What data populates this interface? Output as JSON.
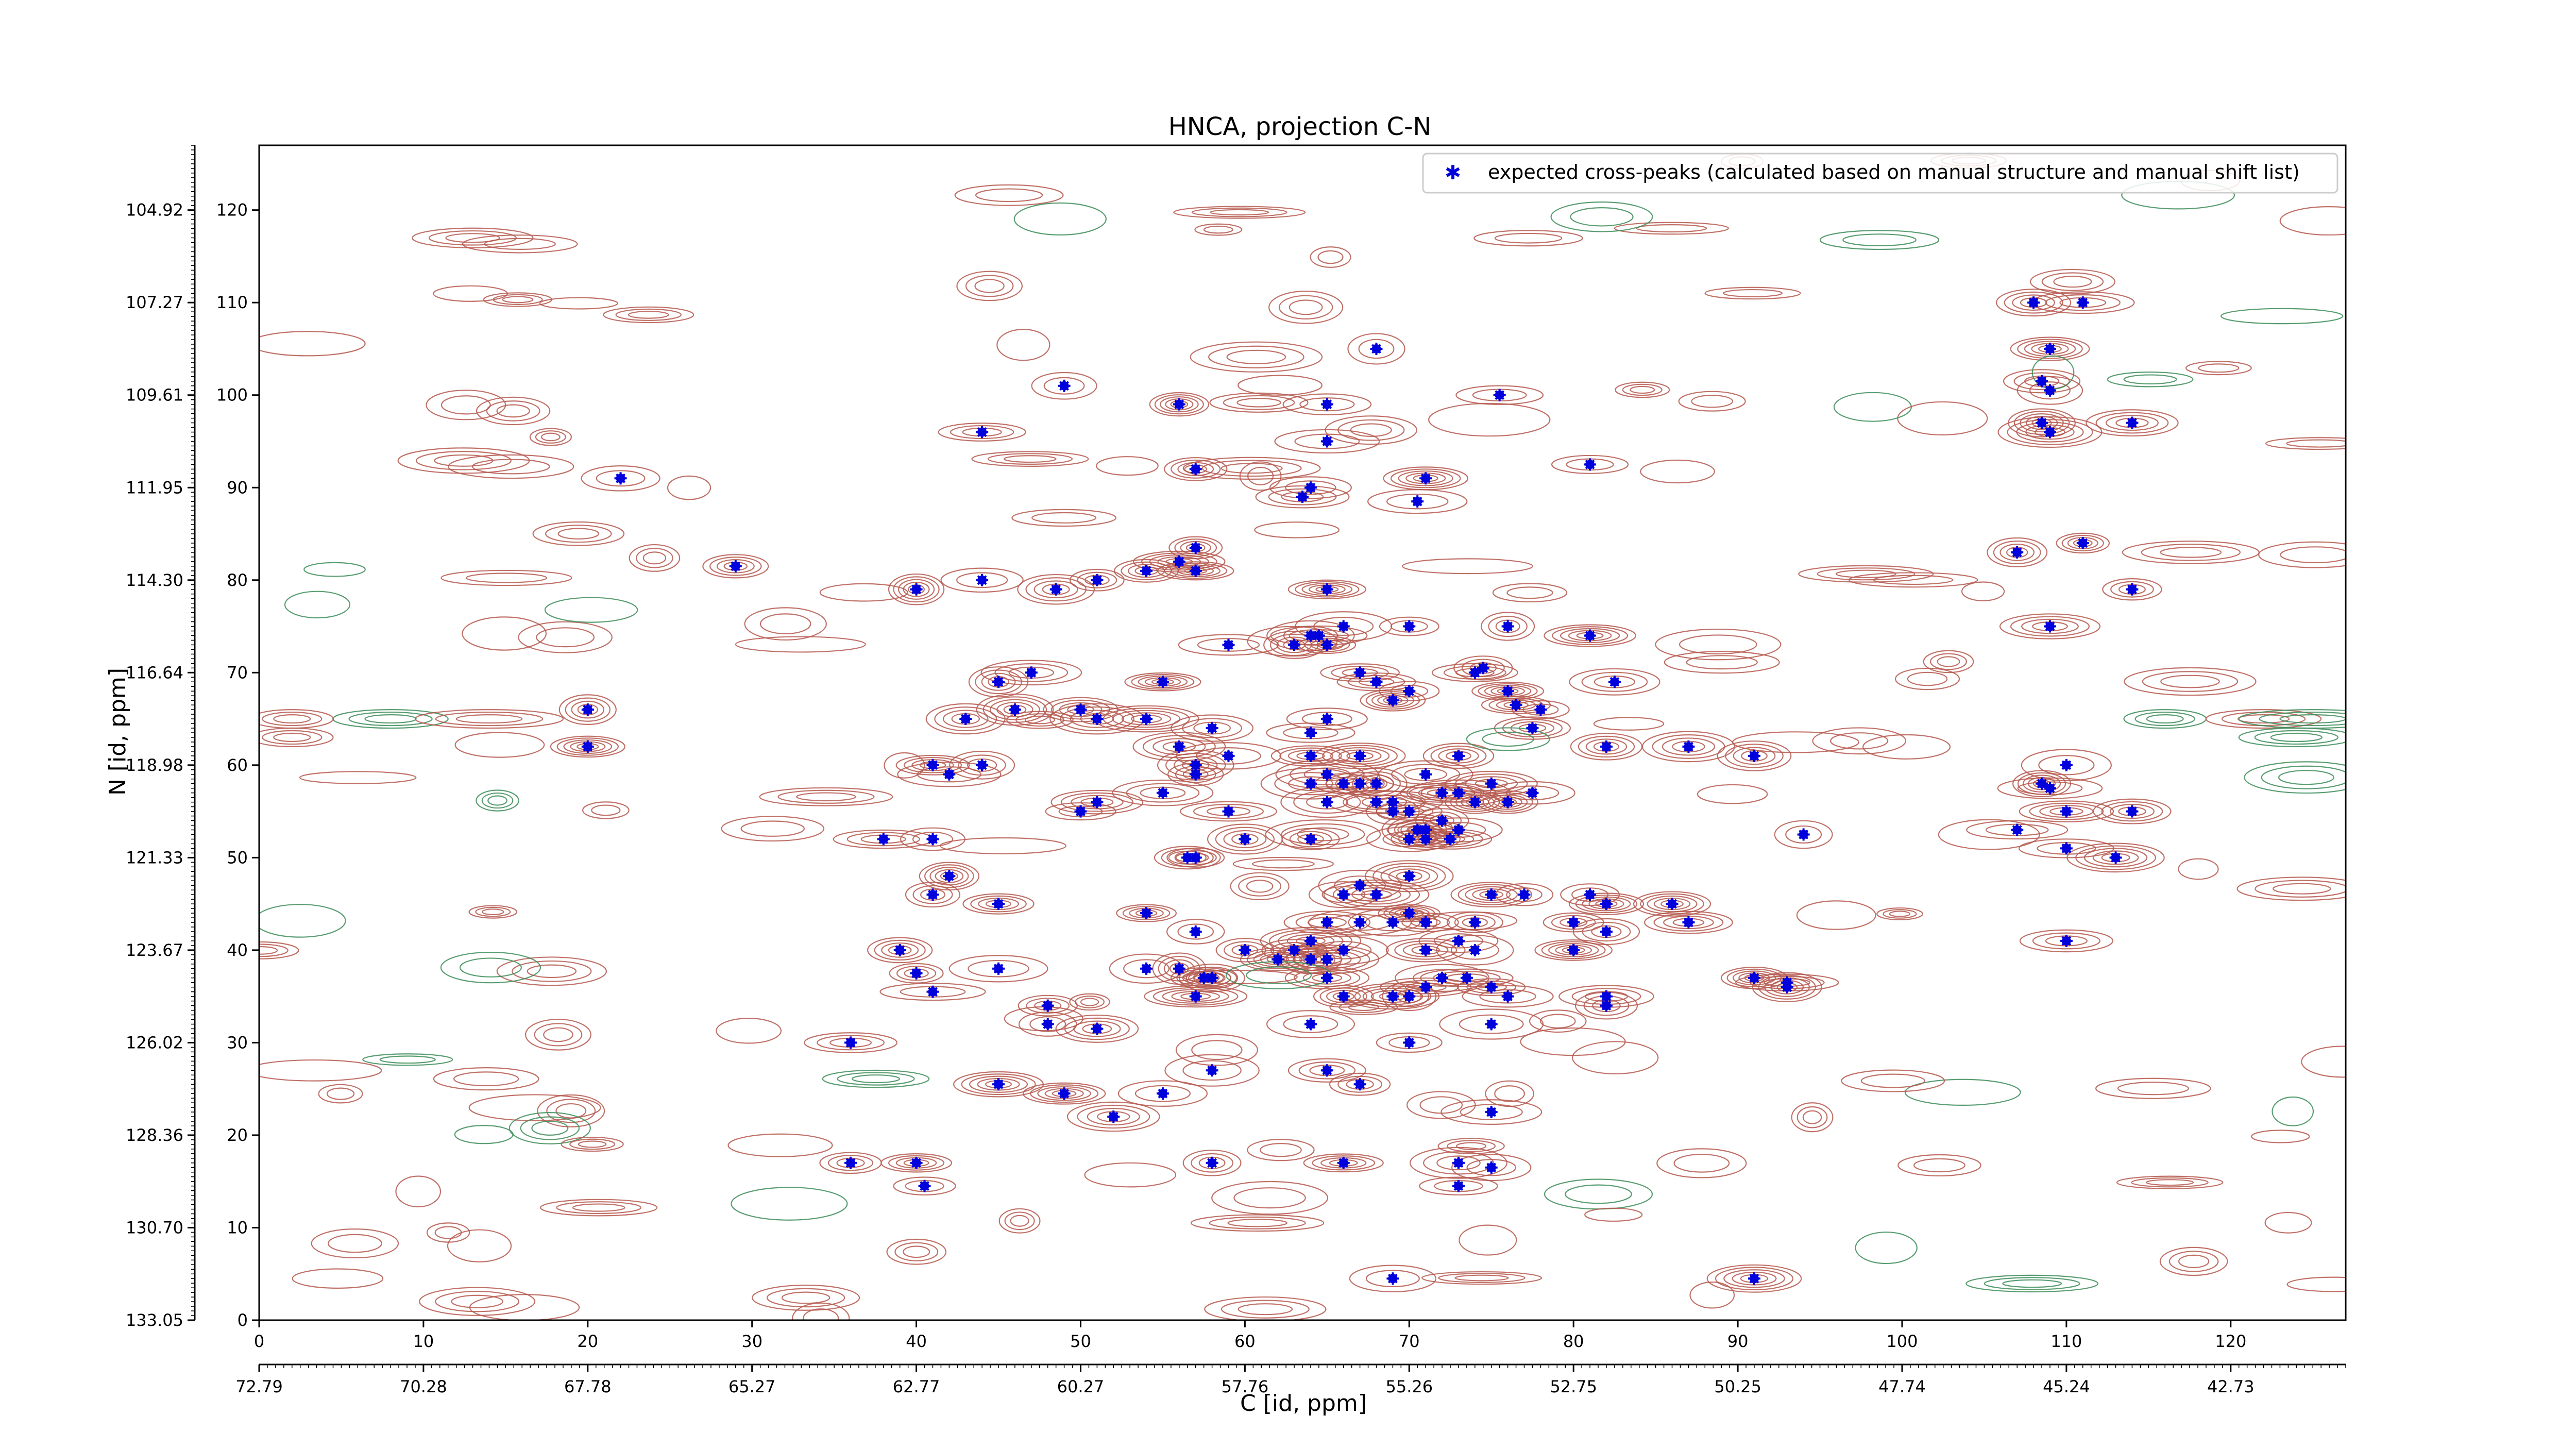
{
  "chart_data": {
    "type": "scatter",
    "title": "HNCA, projection C-N",
    "xlabel": "C [id, ppm]",
    "ylabel": "N [id, ppm]",
    "x_index_range": [
      0,
      127
    ],
    "y_index_range": [
      0,
      127
    ],
    "x_index_ticks": [
      "0",
      "10",
      "20",
      "30",
      "40",
      "50",
      "60",
      "70",
      "80",
      "90",
      "100",
      "110",
      "120"
    ],
    "y_index_ticks": [
      "0",
      "10",
      "20",
      "30",
      "40",
      "50",
      "60",
      "70",
      "80",
      "90",
      "100",
      "110",
      "120"
    ],
    "x_ppm_ticks": [
      "72.79",
      "70.28",
      "67.78",
      "65.27",
      "62.77",
      "60.27",
      "57.76",
      "55.26",
      "52.75",
      "50.25",
      "47.74",
      "45.24",
      "42.73"
    ],
    "y_ppm_ticks": [
      "133.05",
      "130.70",
      "128.36",
      "126.02",
      "123.67",
      "121.33",
      "118.98",
      "116.64",
      "114.30",
      "111.95",
      "109.61",
      "107.27",
      "104.92"
    ],
    "legend": {
      "placement": "upper-right",
      "label": "expected cross-peaks (calculated based on manual structure and manual shift list)"
    },
    "colors": {
      "positive_contour": "#b5584e",
      "negative_contour": "#3c8c58",
      "marker": "#0000dd"
    },
    "points": [
      [
        22,
        91
      ],
      [
        29,
        81.5
      ],
      [
        20,
        66
      ],
      [
        20,
        62
      ],
      [
        44,
        96
      ],
      [
        49,
        101
      ],
      [
        44,
        80
      ],
      [
        40,
        79
      ],
      [
        56,
        99
      ],
      [
        57,
        92
      ],
      [
        65,
        99
      ],
      [
        65,
        95
      ],
      [
        64,
        90
      ],
      [
        63.5,
        89
      ],
      [
        68,
        105
      ],
      [
        70.5,
        88.5
      ],
      [
        71,
        91
      ],
      [
        75.5,
        100
      ],
      [
        81,
        92.5
      ],
      [
        108,
        110
      ],
      [
        111,
        110
      ],
      [
        109,
        105
      ],
      [
        108.5,
        101.5
      ],
      [
        109,
        100.5
      ],
      [
        108.5,
        97
      ],
      [
        109,
        96
      ],
      [
        114,
        97
      ],
      [
        51,
        80
      ],
      [
        54,
        81
      ],
      [
        56,
        82
      ],
      [
        57,
        83.5
      ],
      [
        57,
        81
      ],
      [
        48.5,
        79
      ],
      [
        65,
        79
      ],
      [
        59,
        73
      ],
      [
        63,
        73
      ],
      [
        64,
        74
      ],
      [
        64.5,
        74
      ],
      [
        65,
        73
      ],
      [
        66,
        75
      ],
      [
        67,
        70
      ],
      [
        68,
        69
      ],
      [
        69,
        67
      ],
      [
        70,
        68
      ],
      [
        74,
        70
      ],
      [
        74.5,
        70.5
      ],
      [
        76,
        75
      ],
      [
        81,
        74
      ],
      [
        82.5,
        69
      ],
      [
        76,
        68
      ],
      [
        78,
        66
      ],
      [
        76.5,
        66.5
      ],
      [
        77.5,
        64
      ],
      [
        47,
        70
      ],
      [
        45,
        69
      ],
      [
        43,
        65
      ],
      [
        46,
        66
      ],
      [
        50,
        66
      ],
      [
        51,
        65
      ],
      [
        54,
        65
      ],
      [
        55,
        69
      ],
      [
        58,
        64
      ],
      [
        56,
        62
      ],
      [
        57,
        60
      ],
      [
        57,
        59
      ],
      [
        59,
        61
      ],
      [
        64,
        63.5
      ],
      [
        65,
        65
      ],
      [
        42,
        59
      ],
      [
        41,
        60
      ],
      [
        44,
        60
      ],
      [
        55,
        57
      ],
      [
        59,
        55
      ],
      [
        60,
        52
      ],
      [
        57,
        50
      ],
      [
        56.5,
        50
      ],
      [
        50,
        55
      ],
      [
        51,
        56
      ],
      [
        38,
        52
      ],
      [
        41,
        52
      ],
      [
        42,
        48
      ],
      [
        41,
        46
      ],
      [
        45,
        45
      ],
      [
        64,
        61
      ],
      [
        64,
        58
      ],
      [
        65,
        59
      ],
      [
        66,
        58
      ],
      [
        67,
        61
      ],
      [
        67,
        58
      ],
      [
        68,
        58
      ],
      [
        71,
        59
      ],
      [
        72,
        57
      ],
      [
        73,
        57
      ],
      [
        73,
        61
      ],
      [
        74,
        56
      ],
      [
        75,
        58
      ],
      [
        77.5,
        57
      ],
      [
        76,
        56
      ],
      [
        65,
        56
      ],
      [
        68,
        56
      ],
      [
        69,
        56
      ],
      [
        70,
        55
      ],
      [
        70.5,
        53
      ],
      [
        70,
        52
      ],
      [
        71,
        53
      ],
      [
        71,
        52
      ],
      [
        72.5,
        52
      ],
      [
        73,
        53
      ],
      [
        72,
        54
      ],
      [
        69,
        55
      ],
      [
        64,
        52
      ],
      [
        70,
        48
      ],
      [
        70,
        44
      ],
      [
        68,
        46
      ],
      [
        67,
        47
      ],
      [
        66,
        46
      ],
      [
        65,
        43
      ],
      [
        67,
        43
      ],
      [
        69,
        43
      ],
      [
        71,
        43
      ],
      [
        74,
        43
      ],
      [
        75,
        46
      ],
      [
        77,
        46
      ],
      [
        80,
        43
      ],
      [
        81,
        46
      ],
      [
        82,
        45
      ],
      [
        86,
        45
      ],
      [
        87,
        43
      ],
      [
        80,
        40
      ],
      [
        82,
        42
      ],
      [
        74,
        40
      ],
      [
        73,
        41
      ],
      [
        72,
        37
      ],
      [
        71,
        36
      ],
      [
        73.5,
        37
      ],
      [
        75,
        36
      ],
      [
        76,
        35
      ],
      [
        71,
        40
      ],
      [
        70,
        35
      ],
      [
        66,
        40
      ],
      [
        65,
        39
      ],
      [
        63,
        40
      ],
      [
        64,
        41
      ],
      [
        62,
        39
      ],
      [
        64,
        39
      ],
      [
        65,
        37
      ],
      [
        60,
        40
      ],
      [
        57,
        42
      ],
      [
        56,
        38
      ],
      [
        57.5,
        37
      ],
      [
        58,
        37
      ],
      [
        54,
        38
      ],
      [
        54,
        44
      ],
      [
        45,
        38
      ],
      [
        40,
        37.5
      ],
      [
        41,
        35.5
      ],
      [
        39,
        40
      ],
      [
        48,
        34
      ],
      [
        48,
        32
      ],
      [
        51,
        31.5
      ],
      [
        57,
        35
      ],
      [
        64,
        32
      ],
      [
        66,
        35
      ],
      [
        69,
        35
      ],
      [
        75,
        32
      ],
      [
        82,
        34
      ],
      [
        82,
        35
      ],
      [
        91,
        37
      ],
      [
        93,
        36.5
      ],
      [
        93,
        36
      ],
      [
        36,
        30
      ],
      [
        45,
        25.5
      ],
      [
        49,
        24.5
      ],
      [
        52,
        22
      ],
      [
        55,
        24.5
      ],
      [
        58,
        27
      ],
      [
        65,
        27
      ],
      [
        67,
        25.5
      ],
      [
        70,
        30
      ],
      [
        36,
        17
      ],
      [
        40,
        17
      ],
      [
        40.5,
        14.5
      ],
      [
        58,
        17
      ],
      [
        66,
        17
      ],
      [
        73,
        17
      ],
      [
        75,
        16.5
      ],
      [
        75,
        22.5
      ],
      [
        73,
        14.5
      ],
      [
        69,
        4.5
      ],
      [
        91,
        4.5
      ],
      [
        82,
        62
      ],
      [
        87,
        62
      ],
      [
        91,
        61
      ],
      [
        110,
        60
      ],
      [
        108.5,
        58
      ],
      [
        109,
        57.5
      ],
      [
        110,
        55
      ],
      [
        107,
        53
      ],
      [
        110,
        51
      ],
      [
        113,
        50
      ],
      [
        114,
        55
      ],
      [
        94,
        52.5
      ],
      [
        107,
        83
      ],
      [
        111,
        84
      ],
      [
        114,
        79
      ],
      [
        109,
        75
      ],
      [
        110,
        41
      ],
      [
        70,
        75
      ]
    ]
  }
}
